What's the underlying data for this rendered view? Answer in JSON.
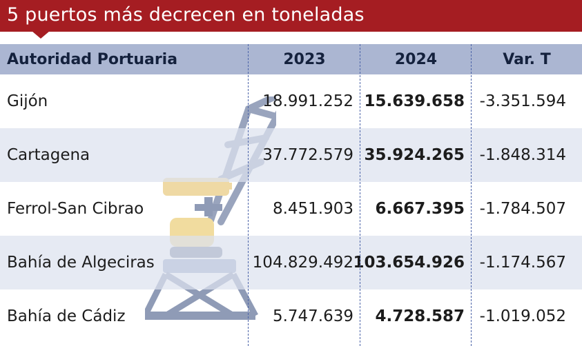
{
  "title": "5 puertos más decrecen en toneladas",
  "colors": {
    "title_bar": "#a51d22",
    "header_row": "#9facc8",
    "shaded_row": "#dde2ee",
    "divider": "#4b63a8"
  },
  "watermark": {
    "icon": "crane-icon"
  },
  "table": {
    "headers": {
      "name": "Autoridad Portuaria",
      "y2023": "2023",
      "y2024": "2024",
      "var": "Var. T"
    },
    "rows": [
      {
        "name": "Gijón",
        "y2023": "18.991.252",
        "y2024": "15.639.658",
        "var": "-3.351.594"
      },
      {
        "name": "Cartagena",
        "y2023": "37.772.579",
        "y2024": "35.924.265",
        "var": "-1.848.314"
      },
      {
        "name": "Ferrol-San Cibrao",
        "y2023": "8.451.903",
        "y2024": "6.667.395",
        "var": "-1.784.507"
      },
      {
        "name": "Bahía de Algeciras",
        "y2023": "104.829.492",
        "y2024": "103.654.926",
        "var": "-1.174.567"
      },
      {
        "name": "Bahía de Cádiz",
        "y2023": "5.747.639",
        "y2024": "4.728.587",
        "var": "-1.019.052"
      }
    ]
  }
}
